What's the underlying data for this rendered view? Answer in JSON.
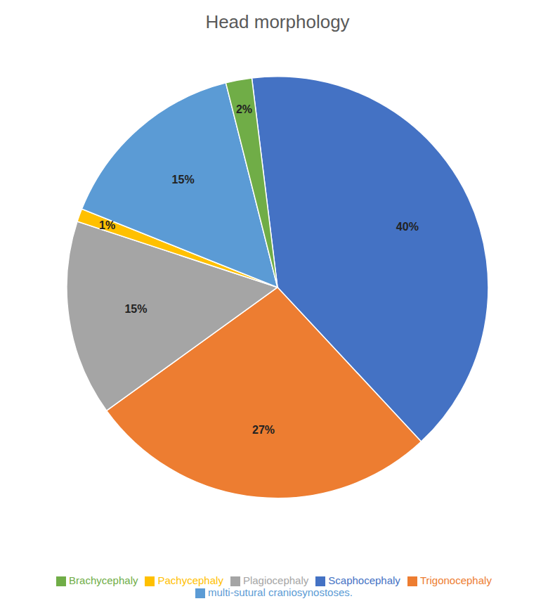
{
  "chart_data": {
    "type": "pie",
    "title": "Head morphology",
    "categories": [
      "Scaphocephaly",
      "Trigonocephaly",
      "Plagiocephaly",
      "Pachycephaly",
      "multi-sutural craniosynostoses.",
      "Brachycephaly"
    ],
    "values": [
      40,
      27,
      15,
      1,
      15,
      2
    ],
    "value_labels": [
      "40%",
      "27%",
      "15%",
      "1%",
      "15%",
      "2%"
    ],
    "colors": [
      "#4472C4",
      "#ED7D31",
      "#A5A5A5",
      "#FFC000",
      "#5B9BD5",
      "#70AD47"
    ],
    "data_labels": true,
    "legend": "bottom"
  }
}
